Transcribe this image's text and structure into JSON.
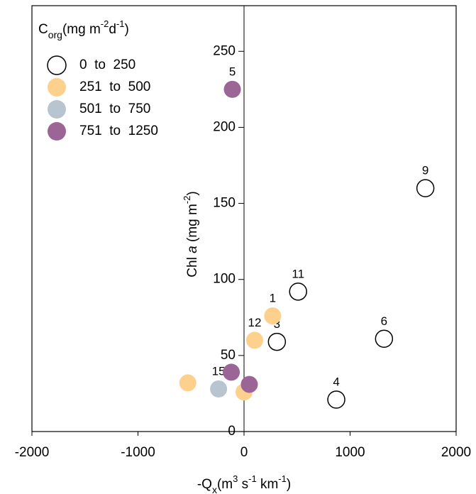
{
  "chart_data": {
    "type": "scatter",
    "legend_title": [
      "C",
      "org",
      "(mg m",
      "-2",
      "d",
      "-1",
      ")"
    ],
    "x_label": [
      "-Q",
      "x",
      "(m",
      "3",
      " s",
      "-1",
      " km",
      "-1",
      ")"
    ],
    "y_label": [
      "Chl ",
      "a",
      " (mg m",
      "-2",
      ")"
    ],
    "xlim": [
      -2000,
      2000
    ],
    "xticks": [
      -2000,
      -1000,
      0,
      1000,
      2000
    ],
    "ylim": [
      0,
      280
    ],
    "yticks": [
      0,
      50,
      100,
      150,
      200,
      250
    ],
    "legend": "upper left",
    "series": [
      {
        "name": "0  to  250",
        "color": "#ffffff",
        "x": [
          1710,
          510,
          310,
          1320,
          870
        ],
        "values": [
          160,
          92,
          59,
          61,
          21
        ],
        "labels": [
          "9",
          "11",
          "3",
          "6",
          "4"
        ]
      },
      {
        "name": "251  to  500",
        "color": "#fdd08e",
        "x": [
          270,
          100,
          -530,
          0
        ],
        "values": [
          76,
          60,
          32,
          26
        ],
        "labels": [
          "1",
          "12",
          null,
          null
        ]
      },
      {
        "name": "501  to  750",
        "color": "#b8c4cf",
        "x": [
          -240
        ],
        "values": [
          28
        ],
        "labels": [
          "15"
        ]
      },
      {
        "name": "751  to  1250",
        "color": "#9b6596",
        "x": [
          -110,
          -120,
          50
        ],
        "values": [
          225,
          39,
          31
        ],
        "labels": [
          "5",
          null,
          null
        ]
      }
    ]
  }
}
